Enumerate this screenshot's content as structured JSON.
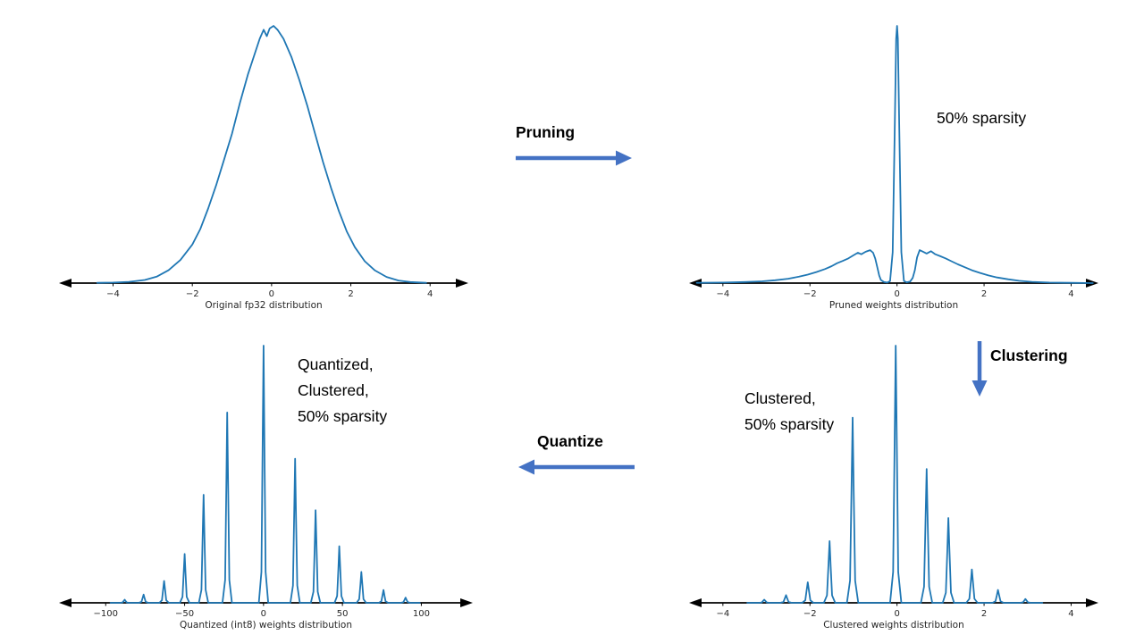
{
  "colors": {
    "curve": "#1f77b4",
    "flow_arrow": "#4472c4",
    "axis": "#000000",
    "tick_text": "#262626",
    "background": "#ffffff"
  },
  "annotations": {
    "pruning": "Pruning",
    "sparsity_50": "50% sparsity",
    "clustering": "Clustering",
    "clustered_lines": [
      "Clustered,",
      "50% sparsity"
    ],
    "quantize": "Quantize",
    "quantized_lines": [
      "Quantized,",
      "Clustered,",
      "50% sparsity"
    ]
  },
  "chart_data": [
    {
      "id": "original-fp32",
      "type": "line",
      "xlabel": "Original fp32 distribution",
      "xlim": [
        -5.5,
        5.1
      ],
      "ylim": [
        0,
        1
      ],
      "grid": false,
      "ticks": [
        -4,
        -2,
        0,
        2,
        4
      ],
      "tick_labels": [
        "−4",
        "−2",
        "0",
        "2",
        "4"
      ],
      "points": [
        [
          -4.4,
          0.001
        ],
        [
          -4.0,
          0.002
        ],
        [
          -3.6,
          0.005
        ],
        [
          -3.2,
          0.012
        ],
        [
          -2.9,
          0.025
        ],
        [
          -2.6,
          0.05
        ],
        [
          -2.3,
          0.09
        ],
        [
          -2.0,
          0.15
        ],
        [
          -1.8,
          0.21
        ],
        [
          -1.6,
          0.29
        ],
        [
          -1.4,
          0.38
        ],
        [
          -1.2,
          0.48
        ],
        [
          -1.0,
          0.58
        ],
        [
          -0.8,
          0.7
        ],
        [
          -0.6,
          0.81
        ],
        [
          -0.45,
          0.88
        ],
        [
          -0.3,
          0.95
        ],
        [
          -0.2,
          0.985
        ],
        [
          -0.12,
          0.96
        ],
        [
          -0.05,
          0.99
        ],
        [
          0.05,
          1.0
        ],
        [
          0.15,
          0.985
        ],
        [
          0.3,
          0.95
        ],
        [
          0.5,
          0.88
        ],
        [
          0.7,
          0.79
        ],
        [
          0.9,
          0.69
        ],
        [
          1.1,
          0.58
        ],
        [
          1.3,
          0.47
        ],
        [
          1.5,
          0.37
        ],
        [
          1.7,
          0.28
        ],
        [
          1.9,
          0.2
        ],
        [
          2.1,
          0.14
        ],
        [
          2.35,
          0.085
        ],
        [
          2.6,
          0.05
        ],
        [
          2.9,
          0.024
        ],
        [
          3.2,
          0.01
        ],
        [
          3.5,
          0.004
        ],
        [
          3.9,
          0.001
        ]
      ]
    },
    {
      "id": "pruned-weights",
      "type": "line",
      "xlabel": "Pruned weights distribution",
      "xlim": [
        -4.9,
        4.75
      ],
      "ylim": [
        0,
        1
      ],
      "grid": false,
      "ticks": [
        -4,
        -2,
        0,
        2,
        4
      ],
      "tick_labels": [
        "−4",
        "−2",
        "0",
        "2",
        "4"
      ],
      "points": [
        [
          -4.6,
          0.001
        ],
        [
          -4.0,
          0.002
        ],
        [
          -3.5,
          0.004
        ],
        [
          -3.1,
          0.007
        ],
        [
          -2.8,
          0.011
        ],
        [
          -2.5,
          0.017
        ],
        [
          -2.25,
          0.025
        ],
        [
          -2.05,
          0.033
        ],
        [
          -1.85,
          0.043
        ],
        [
          -1.65,
          0.055
        ],
        [
          -1.5,
          0.066
        ],
        [
          -1.38,
          0.077
        ],
        [
          -1.25,
          0.086
        ],
        [
          -1.12,
          0.096
        ],
        [
          -1.0,
          0.108
        ],
        [
          -0.9,
          0.118
        ],
        [
          -0.82,
          0.112
        ],
        [
          -0.72,
          0.122
        ],
        [
          -0.62,
          0.128
        ],
        [
          -0.55,
          0.118
        ],
        [
          -0.5,
          0.095
        ],
        [
          -0.45,
          0.06
        ],
        [
          -0.41,
          0.03
        ],
        [
          -0.37,
          0.012
        ],
        [
          -0.3,
          0.004
        ],
        [
          -0.22,
          0.002
        ],
        [
          -0.16,
          0.008
        ],
        [
          -0.1,
          0.12
        ],
        [
          -0.05,
          0.62
        ],
        [
          -0.02,
          0.95
        ],
        [
          0.0,
          1.0
        ],
        [
          0.02,
          0.95
        ],
        [
          0.05,
          0.62
        ],
        [
          0.1,
          0.12
        ],
        [
          0.16,
          0.008
        ],
        [
          0.22,
          0.003
        ],
        [
          0.3,
          0.006
        ],
        [
          0.36,
          0.02
        ],
        [
          0.41,
          0.05
        ],
        [
          0.46,
          0.1
        ],
        [
          0.52,
          0.128
        ],
        [
          0.6,
          0.122
        ],
        [
          0.68,
          0.115
        ],
        [
          0.78,
          0.124
        ],
        [
          0.88,
          0.112
        ],
        [
          1.0,
          0.104
        ],
        [
          1.12,
          0.096
        ],
        [
          1.25,
          0.085
        ],
        [
          1.4,
          0.073
        ],
        [
          1.55,
          0.062
        ],
        [
          1.72,
          0.05
        ],
        [
          1.9,
          0.04
        ],
        [
          2.1,
          0.03
        ],
        [
          2.3,
          0.022
        ],
        [
          2.55,
          0.015
        ],
        [
          2.8,
          0.009
        ],
        [
          3.1,
          0.005
        ],
        [
          3.5,
          0.002
        ],
        [
          4.0,
          0.001
        ],
        [
          4.5,
          0.0
        ]
      ]
    },
    {
      "id": "clustered-weights",
      "type": "line",
      "xlabel": "Clustered weights distribution",
      "xlim": [
        -4.9,
        4.75
      ],
      "ylim": [
        0,
        1
      ],
      "grid": false,
      "ticks": [
        -4,
        -2,
        0,
        2,
        4
      ],
      "tick_labels": [
        "−4",
        "−2",
        "0",
        "2",
        "4"
      ],
      "spike_half_width": 0.13,
      "spikes": [
        [
          -3.05,
          0.012
        ],
        [
          -2.55,
          0.03
        ],
        [
          -2.05,
          0.08
        ],
        [
          -1.55,
          0.24
        ],
        [
          -1.02,
          0.72
        ],
        [
          -0.03,
          1.0
        ],
        [
          0.68,
          0.52
        ],
        [
          1.18,
          0.33
        ],
        [
          1.72,
          0.13
        ],
        [
          2.32,
          0.05
        ],
        [
          2.95,
          0.015
        ]
      ]
    },
    {
      "id": "quantized-int8-weights",
      "type": "line",
      "xlabel": "Quantized (int8) weights distribution",
      "xlim": [
        -133,
        136
      ],
      "ylim": [
        0,
        1
      ],
      "grid": false,
      "ticks": [
        -100,
        -50,
        0,
        50,
        100
      ],
      "tick_labels": [
        "−100",
        "−50",
        "0",
        "50",
        "100"
      ],
      "spike_half_width": 3,
      "spikes": [
        [
          -88,
          0.012
        ],
        [
          -76,
          0.032
        ],
        [
          -63,
          0.085
        ],
        [
          -50,
          0.19
        ],
        [
          -38,
          0.42
        ],
        [
          -23,
          0.74
        ],
        [
          0,
          1.0
        ],
        [
          20,
          0.56
        ],
        [
          33,
          0.36
        ],
        [
          48,
          0.22
        ],
        [
          62,
          0.12
        ],
        [
          76,
          0.05
        ],
        [
          90,
          0.02
        ]
      ]
    }
  ]
}
